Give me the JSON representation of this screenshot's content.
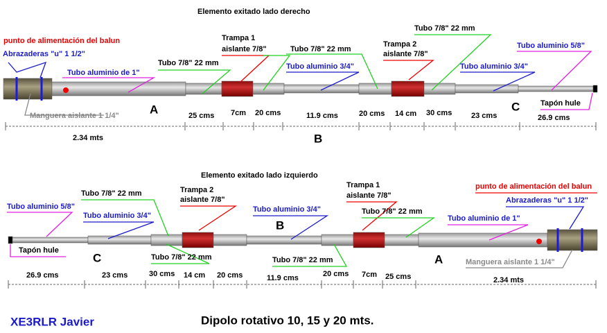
{
  "top": {
    "title": "Elemento exitado lado  derecho",
    "labels": [
      "punto de alimentación del  balun",
      "Abrazaderas  \"u\" 1 1/2\"",
      "Tubo aluminio de 1\"",
      "Tubo 7/8\"   22 mm",
      "Trampa 1",
      "aislante 7/8\"",
      "Tubo 7/8\"   22 mm",
      "Tubo aluminio 3/4\"",
      "Trampa  2",
      "aislante  7/8\"",
      "Tubo 7/8\"   22 mm",
      "Tubo aluminio 3/4\"",
      "Tubo aluminio 5/8\"",
      "Manguera aislante 1 1/4\"",
      "Tapón hule"
    ],
    "letters": [
      "A",
      "B",
      "C"
    ],
    "measures": [
      "2.34 mts",
      "25 cms",
      "7cm",
      "20 cms",
      "11.9 cms",
      "20 cms",
      "14 cm",
      "30 cms",
      "23 cms",
      "26.9 cms"
    ]
  },
  "bottom": {
    "title": "Elemento exitado  lado izquierdo",
    "labels": [
      "Tubo 7/8\"   22 mm",
      "Trampa  2",
      "aislante  7/8\"",
      "Tubo aluminio 5/8\"",
      "Tubo aluminio 3/4\"",
      "Tubo aluminio 3/4\"",
      "Trampa 1",
      "aislante 7/8\"",
      "Tubo 7/8\"   22 mm",
      "punto de alimentación del  balun",
      "Abrazaderas  \"u\" 1 1/2\"",
      "Tubo aluminio de 1\"",
      "Tapón hule",
      "Tubo 7/8\"   22 mm",
      "Tubo 7/8\"   22 mm",
      "Manguera aislante 1 1/4\""
    ],
    "letters": [
      "B",
      "C",
      "A"
    ],
    "measures": [
      "26.9 cms",
      "23 cms",
      "30 cms",
      "14 cm",
      "20 cms",
      "11.9 cms",
      "20 cms",
      "7cm",
      "25 cms",
      "2.34 mts"
    ]
  },
  "footer": {
    "callsign": "XE3RLR Javier",
    "title": "Dipolo rotativo 10, 15 y 20 mts."
  }
}
